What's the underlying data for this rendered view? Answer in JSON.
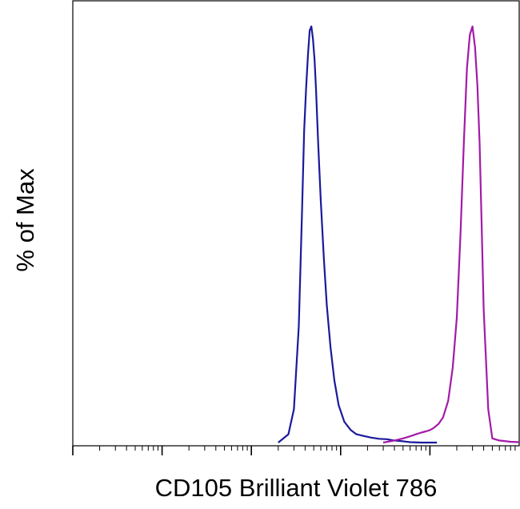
{
  "chart_data": {
    "type": "line",
    "title": "",
    "xlabel": "CD105 Brilliant Violet 786",
    "ylabel": "% of Max",
    "xscale": "log",
    "x_range": [
      10,
      1000000
    ],
    "ylim": [
      0,
      100
    ],
    "x_tick_labels": [],
    "y_tick_labels": [],
    "grid": false,
    "legend": "none",
    "series": [
      {
        "color": "#1a1a9c",
        "x": [
          2000,
          2600,
          3000,
          3400,
          3700,
          3900,
          4100,
          4300,
          4500,
          4700,
          4900,
          5100,
          5300,
          5600,
          6000,
          6500,
          7000,
          7700,
          8500,
          9500,
          11000,
          13000,
          15000,
          18000,
          22000,
          27000,
          33000,
          40000,
          50000,
          60000,
          80000,
          120000
        ],
        "y": [
          0,
          2,
          8,
          28,
          56,
          75,
          85,
          93,
          99,
          100,
          97,
          92,
          85,
          72,
          58,
          44,
          33,
          23,
          15,
          9,
          5,
          3,
          2,
          1.6,
          1.2,
          0.9,
          0.8,
          0.5,
          0.3,
          0.1,
          0,
          0
        ]
      },
      {
        "color": "#a31aa8",
        "x": [
          30000,
          40000,
          50000,
          60000,
          70000,
          80000,
          90000,
          100000,
          110000,
          125000,
          140000,
          160000,
          180000,
          200000,
          220000,
          240000,
          260000,
          280000,
          300000,
          320000,
          340000,
          360000,
          380000,
          400000,
          450000,
          500000,
          600000,
          800000,
          1000000
        ],
        "y": [
          0,
          0.5,
          1,
          1.5,
          2,
          2.4,
          2.7,
          3,
          3.5,
          4.5,
          6,
          10,
          18,
          30,
          50,
          72,
          90,
          98,
          100,
          95,
          86,
          72,
          52,
          32,
          8,
          1,
          0.5,
          0.2,
          0.1
        ]
      }
    ]
  }
}
